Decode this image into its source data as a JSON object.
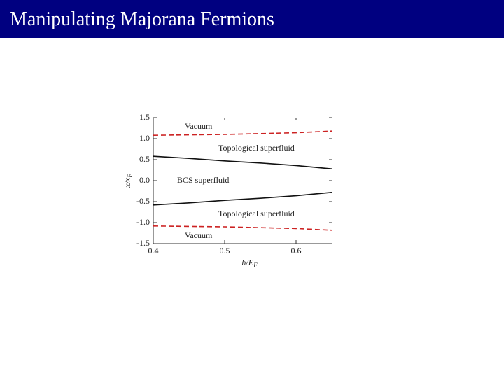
{
  "slide_title": "Manipulating Majorana Fermions",
  "chart_data": {
    "type": "line",
    "xlabel": "h/E",
    "xlabel_subscript": "F",
    "ylabel": "x/x",
    "ylabel_subscript": "F",
    "x": [
      0.4,
      0.45,
      0.5,
      0.55,
      0.6,
      0.65
    ],
    "series": [
      {
        "color": "#cc2222",
        "dashed": true,
        "values": [
          1.08,
          1.09,
          1.1,
          1.12,
          1.14,
          1.18
        ]
      },
      {
        "color": "#111111",
        "dashed": false,
        "values": [
          0.58,
          0.53,
          0.47,
          0.42,
          0.36,
          0.28
        ]
      },
      {
        "color": "#111111",
        "dashed": false,
        "values": [
          -0.58,
          -0.53,
          -0.47,
          -0.42,
          -0.36,
          -0.28
        ]
      },
      {
        "color": "#cc2222",
        "dashed": true,
        "values": [
          -1.08,
          -1.09,
          -1.1,
          -1.12,
          -1.14,
          -1.18
        ]
      }
    ],
    "annotations": [
      {
        "text": "Vacuum",
        "color": "#2a3f9a"
      },
      {
        "text": "Topological superfluid",
        "color": "#b03030"
      },
      {
        "text": "BCS superfluid",
        "color": "#111111"
      },
      {
        "text": "Topological superfluid",
        "color": "#b03030"
      },
      {
        "text": "Vacuum",
        "color": "#2a3f9a"
      }
    ],
    "xlim": [
      0.4,
      0.65
    ],
    "ylim": [
      -1.5,
      1.5
    ],
    "xticks": [
      0.4,
      0.5,
      0.6
    ],
    "yticks": [
      1.5,
      {
        "value": 1.0,
        "label": "1.0"
      },
      0.5,
      {
        "value": 0.0,
        "label": "0.0"
      },
      -0.5,
      {
        "value": -1.0,
        "label": "-1.0"
      },
      -1.5
    ],
    "grid": false
  }
}
